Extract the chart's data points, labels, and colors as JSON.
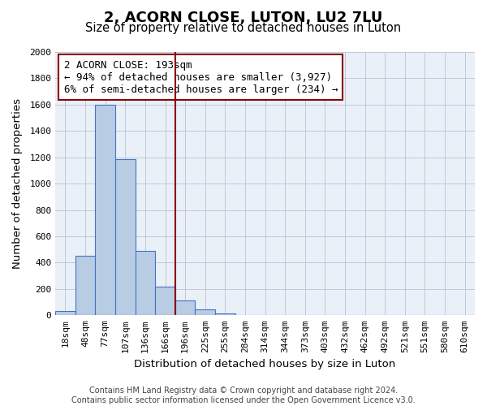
{
  "title": "2, ACORN CLOSE, LUTON, LU2 7LU",
  "subtitle": "Size of property relative to detached houses in Luton",
  "xlabel": "Distribution of detached houses by size in Luton",
  "ylabel": "Number of detached properties",
  "footer_line1": "Contains HM Land Registry data © Crown copyright and database right 2024.",
  "footer_line2": "Contains public sector information licensed under the Open Government Licence v3.0.",
  "bin_labels": [
    "18sqm",
    "48sqm",
    "77sqm",
    "107sqm",
    "136sqm",
    "166sqm",
    "196sqm",
    "225sqm",
    "255sqm",
    "284sqm",
    "314sqm",
    "344sqm",
    "373sqm",
    "403sqm",
    "432sqm",
    "462sqm",
    "492sqm",
    "521sqm",
    "551sqm",
    "580sqm",
    "610sqm"
  ],
  "bar_values": [
    35,
    455,
    1600,
    1185,
    490,
    215,
    115,
    45,
    15,
    0,
    0,
    0,
    0,
    0,
    0,
    0,
    0,
    0,
    0,
    0,
    0
  ],
  "ylim": [
    0,
    2000
  ],
  "yticks": [
    0,
    200,
    400,
    600,
    800,
    1000,
    1200,
    1400,
    1600,
    1800,
    2000
  ],
  "bar_color": "#b8cce4",
  "bar_edge_color": "#4472c4",
  "vline_x_index": 6,
  "vline_color": "#8b0000",
  "annotation_line1": "2 ACORN CLOSE: 193sqm",
  "annotation_line2": "← 94% of detached houses are smaller (3,927)",
  "annotation_line3": "6% of semi-detached houses are larger (234) →",
  "annotation_box_color": "#8b0000",
  "background_color": "#ffffff",
  "axes_bg_color": "#eaf0f8",
  "grid_color": "#c0c8d8",
  "title_fontsize": 13,
  "subtitle_fontsize": 10.5,
  "axis_label_fontsize": 9.5,
  "tick_fontsize": 8,
  "annotation_fontsize": 9,
  "footer_fontsize": 7
}
